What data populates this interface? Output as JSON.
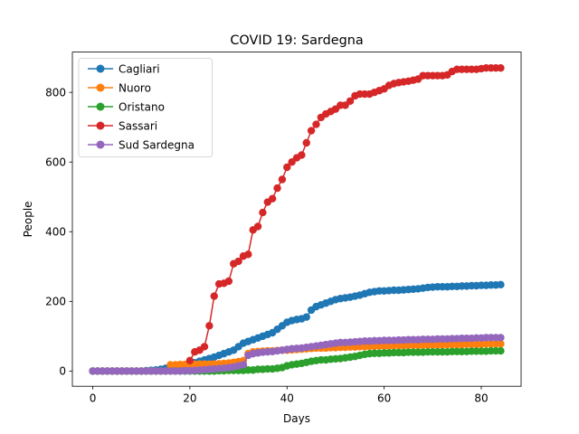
{
  "chart_data": {
    "type": "line",
    "title": "COVID 19: Sardegna",
    "xlabel": "Days",
    "ylabel": "People",
    "xlim": [
      -4.2,
      88.2
    ],
    "ylim": [
      -43.6,
      915.6
    ],
    "xticks": [
      0,
      20,
      40,
      60,
      80
    ],
    "yticks": [
      0,
      200,
      400,
      600,
      800
    ],
    "grid": false,
    "legend_position": "top-left",
    "x": [
      0,
      1,
      2,
      3,
      4,
      5,
      6,
      7,
      8,
      9,
      10,
      11,
      12,
      13,
      14,
      15,
      16,
      17,
      18,
      19,
      20,
      21,
      22,
      23,
      24,
      25,
      26,
      27,
      28,
      29,
      30,
      31,
      32,
      33,
      34,
      35,
      36,
      37,
      38,
      39,
      40,
      41,
      42,
      43,
      44,
      45,
      46,
      47,
      48,
      49,
      50,
      51,
      52,
      53,
      54,
      55,
      56,
      57,
      58,
      59,
      60,
      61,
      62,
      63,
      64,
      65,
      66,
      67,
      68,
      69,
      70,
      71,
      72,
      73,
      74,
      75,
      76,
      77,
      78,
      79,
      80,
      81,
      82,
      83,
      84
    ],
    "series": [
      {
        "name": "Cagliari",
        "color": "#1f77b4",
        "values": [
          0,
          0,
          0,
          0,
          0,
          0,
          0,
          0,
          0,
          0,
          0,
          1,
          2,
          3,
          5,
          8,
          10,
          12,
          14,
          16,
          20,
          24,
          28,
          32,
          36,
          40,
          45,
          50,
          55,
          60,
          70,
          80,
          85,
          90,
          95,
          100,
          105,
          110,
          120,
          130,
          140,
          145,
          148,
          150,
          155,
          175,
          185,
          190,
          195,
          200,
          205,
          208,
          210,
          212,
          215,
          218,
          222,
          226,
          228,
          230,
          230,
          231,
          232,
          232,
          233,
          234,
          235,
          236,
          238,
          240,
          241,
          242,
          242,
          242,
          243,
          243,
          244,
          244,
          245,
          245,
          246,
          246,
          247,
          247,
          248
        ]
      },
      {
        "name": "Nuoro",
        "color": "#ff7f0e",
        "values": [
          0,
          0,
          0,
          0,
          0,
          0,
          0,
          0,
          0,
          0,
          0,
          0,
          0,
          0,
          0,
          0,
          18,
          18,
          19,
          19,
          19,
          19,
          20,
          20,
          20,
          20,
          21,
          22,
          23,
          25,
          27,
          30,
          50,
          55,
          56,
          57,
          58,
          58,
          59,
          60,
          60,
          61,
          62,
          63,
          64,
          65,
          66,
          66,
          66,
          67,
          67,
          68,
          68,
          69,
          69,
          70,
          70,
          71,
          71,
          72,
          72,
          72,
          73,
          73,
          73,
          74,
          74,
          74,
          74,
          75,
          75,
          75,
          75,
          76,
          76,
          76,
          76,
          77,
          77,
          77,
          77,
          78,
          78,
          78,
          78
        ]
      },
      {
        "name": "Oristano",
        "color": "#2ca02c",
        "values": [
          0,
          0,
          0,
          0,
          0,
          0,
          0,
          0,
          0,
          0,
          0,
          0,
          0,
          0,
          0,
          0,
          0,
          0,
          0,
          0,
          0,
          0,
          0,
          0,
          0,
          0,
          1,
          1,
          2,
          2,
          2,
          2,
          3,
          3,
          5,
          5,
          6,
          6,
          8,
          10,
          15,
          18,
          20,
          22,
          25,
          28,
          30,
          32,
          32,
          34,
          35,
          36,
          38,
          40,
          42,
          45,
          48,
          50,
          51,
          51,
          52,
          52,
          53,
          53,
          53,
          54,
          54,
          54,
          54,
          55,
          55,
          55,
          55,
          55,
          56,
          56,
          56,
          56,
          57,
          57,
          57,
          57,
          58,
          58,
          58
        ]
      },
      {
        "name": "Sassari",
        "color": "#d62728",
        "values": [
          null,
          null,
          null,
          null,
          null,
          null,
          null,
          null,
          null,
          null,
          null,
          null,
          null,
          null,
          null,
          null,
          null,
          null,
          null,
          null,
          30,
          55,
          60,
          70,
          130,
          215,
          250,
          252,
          258,
          308,
          315,
          330,
          335,
          405,
          415,
          455,
          485,
          495,
          525,
          550,
          585,
          600,
          612,
          620,
          655,
          690,
          708,
          728,
          738,
          745,
          752,
          763,
          763,
          775,
          790,
          795,
          795,
          795,
          800,
          805,
          810,
          820,
          825,
          828,
          830,
          832,
          835,
          838,
          848,
          848,
          848,
          848,
          848,
          850,
          860,
          866,
          866,
          866,
          866,
          866,
          868,
          870,
          870,
          870,
          870
        ]
      },
      {
        "name": "Sud Sardegna",
        "color": "#9467bd",
        "values": [
          0,
          0,
          0,
          0,
          0,
          0,
          0,
          0,
          0,
          0,
          0,
          0,
          0,
          0,
          0,
          0,
          0,
          0,
          0,
          1,
          1,
          2,
          3,
          4,
          5,
          6,
          7,
          8,
          10,
          12,
          15,
          18,
          45,
          50,
          52,
          54,
          55,
          56,
          58,
          60,
          62,
          64,
          65,
          66,
          68,
          70,
          72,
          74,
          76,
          78,
          80,
          82,
          82,
          83,
          84,
          85,
          86,
          86,
          87,
          87,
          88,
          88,
          88,
          89,
          89,
          90,
          90,
          90,
          91,
          91,
          91,
          92,
          92,
          92,
          93,
          93,
          94,
          94,
          94,
          95,
          95,
          96,
          96,
          96,
          96
        ]
      }
    ]
  }
}
